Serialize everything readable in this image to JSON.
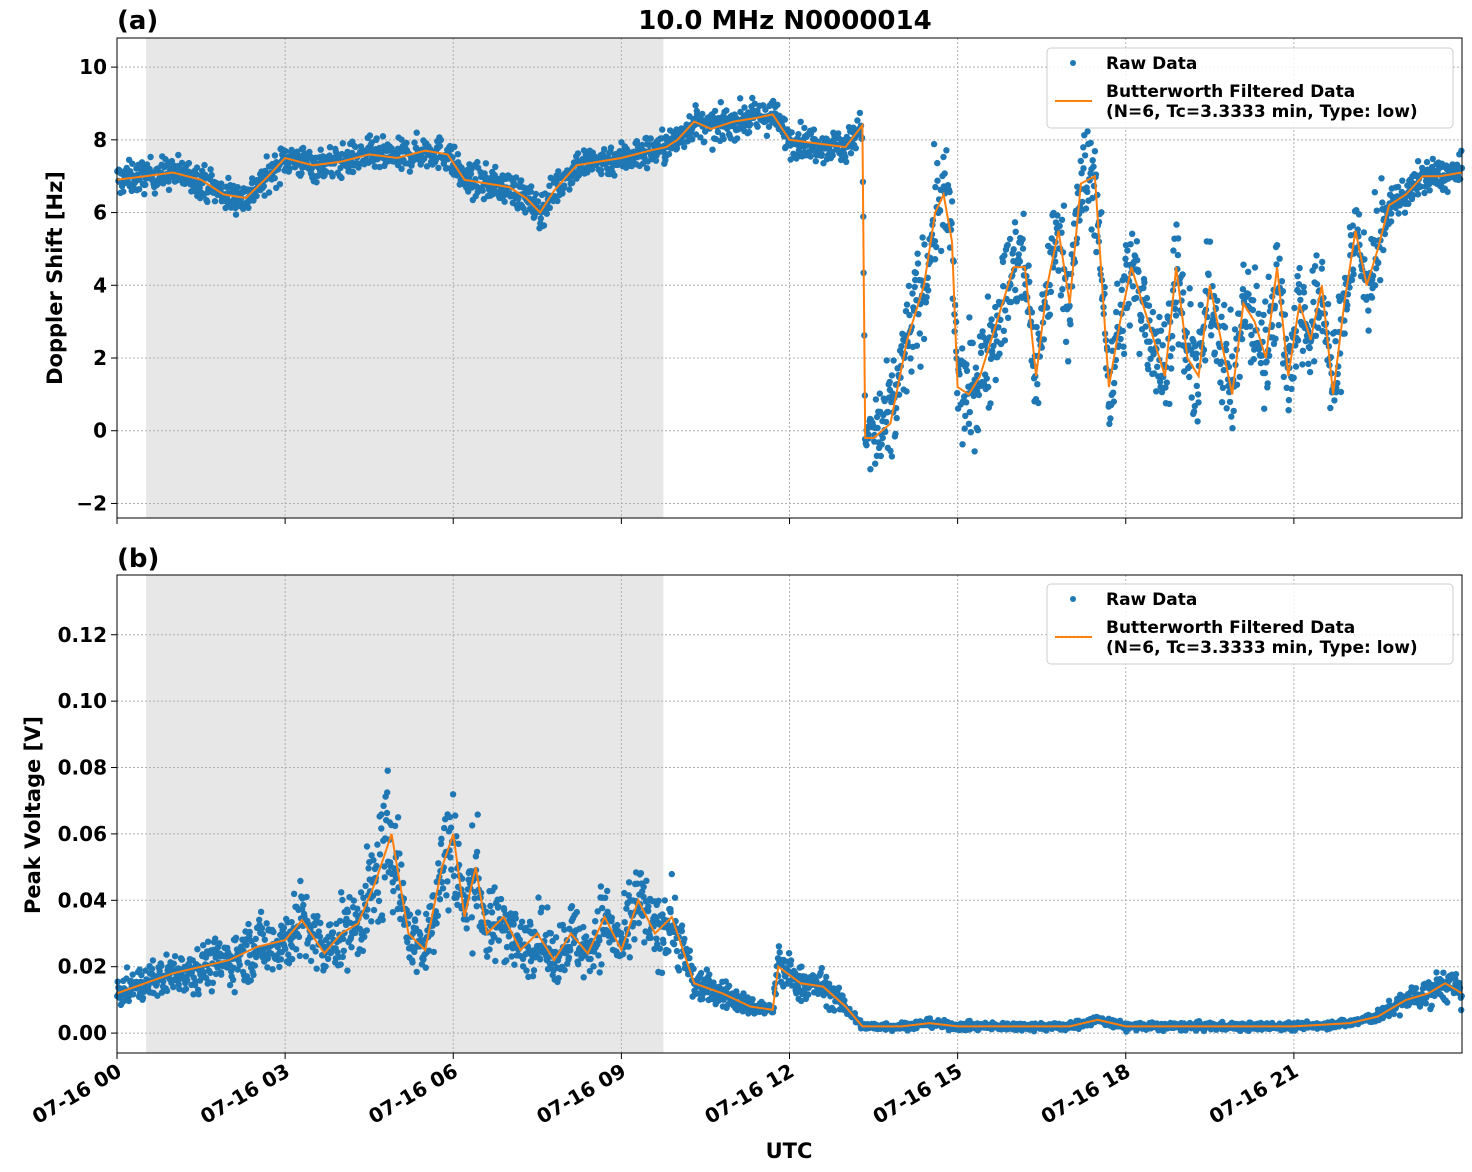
{
  "figure": {
    "title": "10.0 MHz N0000014",
    "xlabel": "UTC"
  },
  "x_tick_labels": [
    "07-16 00",
    "07-16 03",
    "07-16 06",
    "07-16 09",
    "07-16 12",
    "07-16 15",
    "07-16 18",
    "07-16 21"
  ],
  "legend": {
    "raw": "Raw Data",
    "filtered_line1": "Butterworth Filtered Data",
    "filtered_line2": "(N=6, Tc=3.3333 min, Type: low)"
  },
  "colors": {
    "raw": "#1f77b4",
    "filtered": "#ff7f0e",
    "night_shade": "#e7e7e7",
    "grid": "#b0b0b0"
  },
  "chart_data": [
    {
      "type": "scatter",
      "panel_label": "(a)",
      "title": "10.0 MHz N0000014",
      "xlabel": "",
      "ylabel": "Doppler Shift [Hz]",
      "x_unit": "hours UTC on 07-16",
      "xlim": [
        0,
        24
      ],
      "ylim": [
        -2.4,
        10.8
      ],
      "y_ticks": [
        -2,
        0,
        2,
        4,
        6,
        8,
        10
      ],
      "y_tick_labels": [
        "−2",
        "0",
        "2",
        "4",
        "6",
        "8",
        "10"
      ],
      "shaded_x_range": [
        0.52,
        9.75
      ],
      "grid": true,
      "legend_position": "upper right",
      "series": [
        {
          "name": "Butterworth Filtered Data (N=6, Tc=3.3333 min, Type: low)",
          "type": "line",
          "spread": 1.1,
          "x": [
            0,
            0.5,
            1,
            1.5,
            1.9,
            2.3,
            2.7,
            3.0,
            3.5,
            4.0,
            4.5,
            5.0,
            5.5,
            5.9,
            6.2,
            6.6,
            7.0,
            7.3,
            7.55,
            7.8,
            8.2,
            8.6,
            9.0,
            9.5,
            9.8,
            10.0,
            10.3,
            10.6,
            11.0,
            11.4,
            11.7,
            12.0,
            12.5,
            13.0,
            13.3,
            13.35,
            13.5,
            13.8,
            14.1,
            14.4,
            14.6,
            14.75,
            14.9,
            15.0,
            15.2,
            15.4,
            15.7,
            16.0,
            16.2,
            16.4,
            16.6,
            16.8,
            17.0,
            17.2,
            17.45,
            17.7,
            17.9,
            18.1,
            18.3,
            18.5,
            18.7,
            18.9,
            19.1,
            19.3,
            19.5,
            19.7,
            19.9,
            20.1,
            20.3,
            20.5,
            20.7,
            20.9,
            21.1,
            21.3,
            21.5,
            21.7,
            21.9,
            22.1,
            22.3,
            22.5,
            22.7,
            23.0,
            23.3,
            23.6,
            24.0
          ],
          "values": [
            6.9,
            7.0,
            7.1,
            6.9,
            6.5,
            6.4,
            7.0,
            7.5,
            7.3,
            7.4,
            7.6,
            7.5,
            7.7,
            7.6,
            6.9,
            6.8,
            6.7,
            6.4,
            6.0,
            6.6,
            7.3,
            7.4,
            7.5,
            7.7,
            7.8,
            8.0,
            8.5,
            8.3,
            8.5,
            8.6,
            8.7,
            8.0,
            7.9,
            7.8,
            8.4,
            -0.2,
            -0.2,
            0.2,
            2.5,
            4.0,
            6.0,
            6.5,
            5.2,
            1.2,
            1.0,
            1.5,
            3.0,
            4.5,
            4.5,
            1.5,
            4.0,
            5.5,
            3.5,
            6.8,
            7.0,
            1.2,
            3.0,
            4.5,
            3.5,
            2.5,
            1.5,
            4.5,
            2.0,
            1.5,
            4.0,
            2.5,
            1.0,
            3.5,
            3.0,
            2.0,
            4.5,
            1.5,
            3.5,
            2.5,
            4.0,
            1.0,
            3.5,
            5.5,
            4.0,
            5.0,
            6.2,
            6.5,
            7.0,
            7.0,
            7.1
          ]
        },
        {
          "name": "Raw Data",
          "type": "scatter",
          "note": "dense scatter surrounding the filtered curve"
        }
      ]
    },
    {
      "type": "scatter",
      "panel_label": "(b)",
      "xlabel": "UTC",
      "ylabel": "Peak Voltage [V]",
      "x_unit": "hours UTC on 07-16",
      "xlim": [
        0,
        24
      ],
      "ylim": [
        -0.006,
        0.138
      ],
      "y_ticks": [
        0.0,
        0.02,
        0.04,
        0.06,
        0.08,
        0.1,
        0.12
      ],
      "y_tick_labels": [
        "0.00",
        "0.02",
        "0.04",
        "0.06",
        "0.08",
        "0.10",
        "0.12"
      ],
      "shaded_x_range": [
        0.52,
        9.75
      ],
      "grid": true,
      "legend_position": "upper right",
      "series": [
        {
          "name": "Butterworth Filtered Data (N=6, Tc=3.3333 min, Type: low)",
          "type": "line",
          "spread": 0.4,
          "x": [
            0,
            0.5,
            1,
            1.5,
            2.0,
            2.5,
            3.0,
            3.3,
            3.7,
            4.0,
            4.3,
            4.6,
            4.9,
            5.2,
            5.5,
            5.8,
            6.0,
            6.2,
            6.4,
            6.6,
            6.9,
            7.2,
            7.5,
            7.8,
            8.1,
            8.4,
            8.7,
            9.0,
            9.3,
            9.6,
            9.9,
            10.3,
            10.8,
            11.3,
            11.7,
            11.8,
            12.2,
            12.6,
            13.0,
            13.3,
            13.5,
            14.0,
            14.5,
            15.0,
            16.0,
            17.0,
            17.5,
            18.0,
            19.0,
            20.0,
            21.0,
            22.0,
            22.5,
            23.0,
            23.4,
            23.7,
            24.0
          ],
          "values": [
            0.012,
            0.015,
            0.018,
            0.02,
            0.022,
            0.026,
            0.028,
            0.034,
            0.024,
            0.03,
            0.033,
            0.045,
            0.06,
            0.03,
            0.025,
            0.05,
            0.06,
            0.035,
            0.05,
            0.03,
            0.035,
            0.025,
            0.03,
            0.022,
            0.03,
            0.024,
            0.035,
            0.025,
            0.04,
            0.03,
            0.035,
            0.015,
            0.012,
            0.008,
            0.007,
            0.02,
            0.015,
            0.014,
            0.008,
            0.002,
            0.002,
            0.002,
            0.003,
            0.002,
            0.002,
            0.002,
            0.004,
            0.002,
            0.002,
            0.002,
            0.002,
            0.003,
            0.005,
            0.01,
            0.012,
            0.015,
            0.012
          ]
        },
        {
          "name": "Raw Data",
          "type": "scatter",
          "note": "dense scatter surrounding the filtered curve"
        }
      ]
    }
  ]
}
